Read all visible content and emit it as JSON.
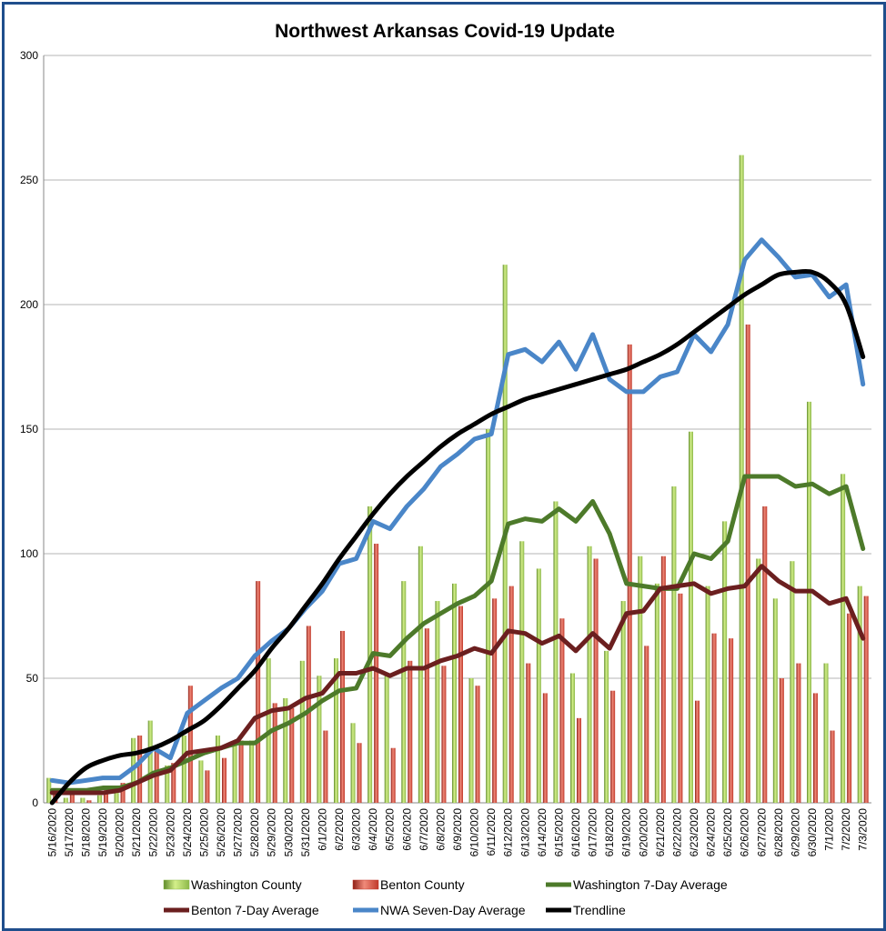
{
  "chart_data": {
    "type": "bar",
    "title": "Northwest Arkansas Covid-19 Update",
    "xlabel": "",
    "ylabel": "",
    "ylim": [
      0,
      300
    ],
    "yticks": [
      0,
      50,
      100,
      150,
      200,
      250,
      300
    ],
    "grid": true,
    "legend_position": "bottom",
    "categories": [
      "5/16/2020",
      "5/17/2020",
      "5/18/2020",
      "5/19/2020",
      "5/20/2020",
      "5/21/2020",
      "5/22/2020",
      "5/23/2020",
      "5/24/2020",
      "5/25/2020",
      "5/26/2020",
      "5/27/2020",
      "5/28/2020",
      "5/29/2020",
      "5/30/2020",
      "5/31/2020",
      "6/1/2020",
      "6/2/2020",
      "6/3/2020",
      "6/4/2020",
      "6/5/2020",
      "6/6/2020",
      "6/7/2020",
      "6/8/2020",
      "6/9/2020",
      "6/10/2020",
      "6/11/2020",
      "6/12/2020",
      "6/13/2020",
      "6/14/2020",
      "6/15/2020",
      "6/16/2020",
      "6/17/2020",
      "6/18/2020",
      "6/19/2020",
      "6/20/2020",
      "6/21/2020",
      "6/22/2020",
      "6/23/2020",
      "6/24/2020",
      "6/25/2020",
      "6/26/2020",
      "6/27/2020",
      "6/28/2020",
      "6/29/2020",
      "6/30/2020",
      "7/1/2020",
      "7/2/2020",
      "7/3/2020"
    ],
    "series": [
      {
        "name": "Washington County",
        "kind": "bar",
        "color": "#8db84a",
        "values": [
          10,
          2,
          2,
          3,
          4,
          26,
          33,
          15,
          27,
          17,
          27,
          24,
          25,
          58,
          42,
          57,
          51,
          58,
          32,
          119,
          52,
          89,
          103,
          81,
          88,
          50,
          150,
          216,
          105,
          94,
          121,
          52,
          103,
          61,
          81,
          99,
          88,
          127,
          149,
          87,
          113,
          260,
          98,
          82,
          97,
          161,
          56,
          132,
          87
        ]
      },
      {
        "name": "Benton County",
        "kind": "bar",
        "color": "#c0392b",
        "values": [
          4,
          5,
          1,
          5,
          8,
          27,
          22,
          16,
          47,
          13,
          18,
          25,
          89,
          40,
          38,
          71,
          29,
          69,
          24,
          104,
          22,
          57,
          70,
          55,
          79,
          47,
          82,
          87,
          56,
          44,
          74,
          34,
          98,
          45,
          184,
          63,
          99,
          84,
          41,
          68,
          66,
          192,
          119,
          50,
          56,
          44,
          29,
          76,
          83
        ]
      },
      {
        "name": "Washington 7-Day Average",
        "kind": "line",
        "color": "#4d7a2a",
        "values": [
          5,
          5,
          5,
          6,
          6,
          8,
          12,
          14,
          17,
          20,
          22,
          24,
          24,
          29,
          32,
          36,
          41,
          45,
          46,
          60,
          59,
          66,
          72,
          76,
          80,
          83,
          89,
          112,
          114,
          113,
          118,
          113,
          121,
          108,
          88,
          87,
          86,
          86,
          100,
          98,
          105,
          131,
          131,
          131,
          127,
          128,
          124,
          127,
          102
        ]
      },
      {
        "name": "Benton 7-Day Average",
        "kind": "line",
        "color": "#6b1f1f",
        "values": [
          4,
          4,
          4,
          4,
          5,
          8,
          11,
          13,
          20,
          21,
          22,
          25,
          34,
          37,
          38,
          42,
          44,
          52,
          52,
          54,
          51,
          54,
          54,
          57,
          59,
          62,
          60,
          69,
          68,
          64,
          67,
          61,
          68,
          62,
          76,
          77,
          86,
          87,
          88,
          84,
          86,
          87,
          95,
          89,
          85,
          85,
          80,
          82,
          66
        ]
      },
      {
        "name": "NWA Seven-Day Average",
        "kind": "line",
        "color": "#4a86c8",
        "values": [
          9,
          8,
          9,
          10,
          10,
          15,
          22,
          18,
          36,
          41,
          46,
          50,
          59,
          65,
          70,
          78,
          85,
          96,
          98,
          113,
          110,
          119,
          126,
          135,
          140,
          146,
          148,
          180,
          182,
          177,
          185,
          174,
          188,
          170,
          165,
          165,
          171,
          173,
          188,
          181,
          192,
          218,
          226,
          219,
          211,
          212,
          203,
          208,
          168
        ]
      },
      {
        "name": "Trendline",
        "kind": "line",
        "color": "#000000",
        "values": [
          0,
          8,
          14,
          17,
          19,
          20,
          22,
          25,
          29,
          33,
          39,
          46,
          53,
          62,
          70,
          79,
          88,
          98,
          107,
          116,
          124,
          131,
          137,
          143,
          148,
          152,
          156,
          159,
          162,
          164,
          166,
          168,
          170,
          172,
          174,
          177,
          180,
          184,
          189,
          194,
          199,
          204,
          208,
          212,
          213,
          213,
          209,
          200,
          179
        ]
      }
    ]
  }
}
